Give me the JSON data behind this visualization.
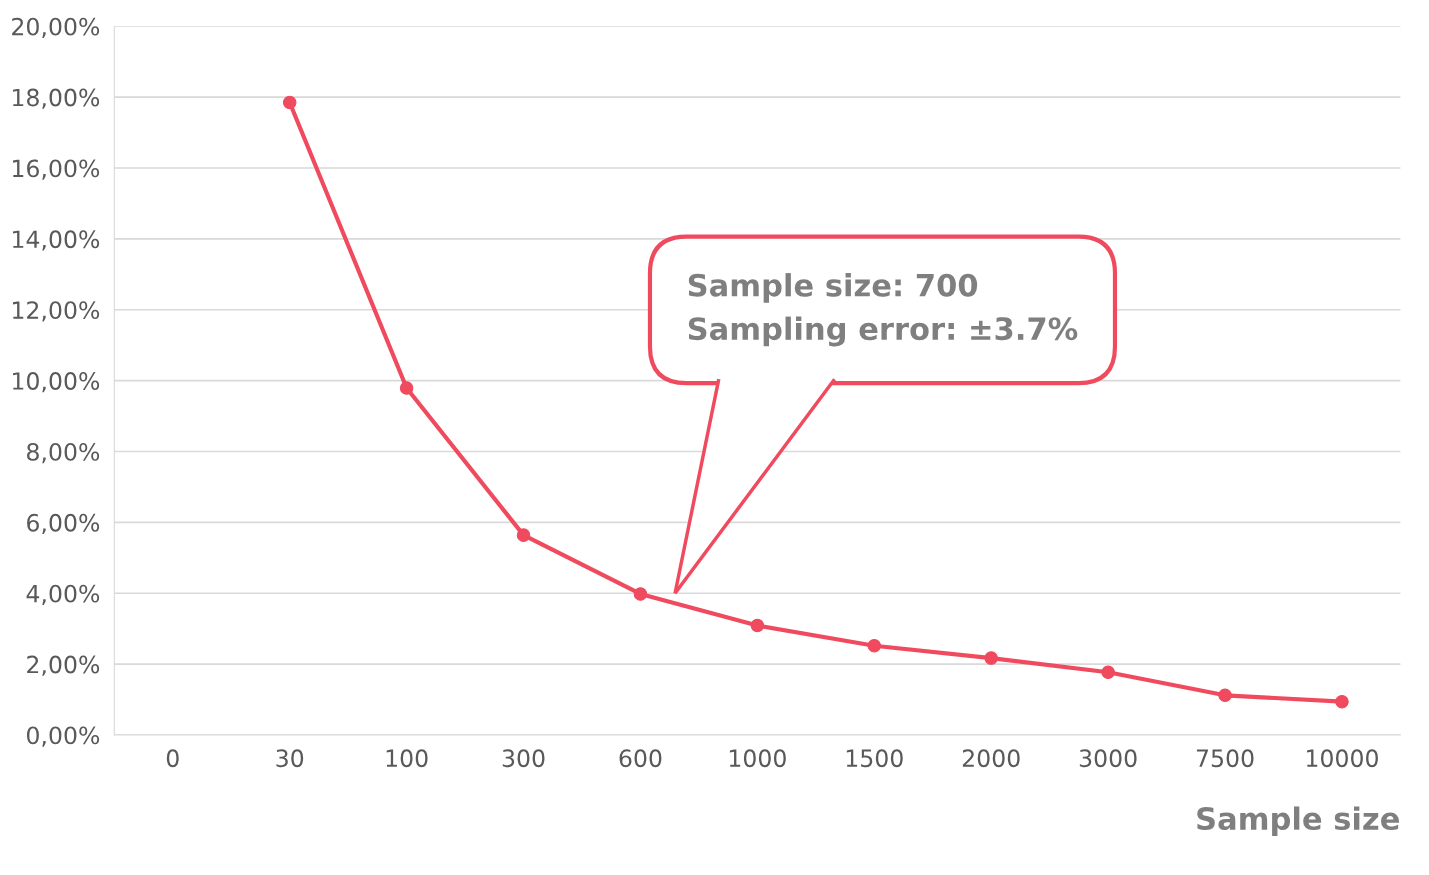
{
  "chart_data": {
    "type": "line",
    "xlabel": "Sample size",
    "categories": [
      "0",
      "30",
      "100",
      "300",
      "600",
      "1000",
      "1500",
      "2000",
      "3000",
      "7500",
      "10000"
    ],
    "series": [
      {
        "color": "#f04a5e",
        "values": [
          null,
          17.85,
          9.79,
          5.64,
          3.98,
          3.09,
          2.52,
          2.17,
          1.77,
          1.12,
          0.94
        ]
      }
    ],
    "ylim": [
      0,
      20
    ],
    "yticks": [
      {
        "value": 0,
        "label": "0,00%"
      },
      {
        "value": 2,
        "label": "2,00%"
      },
      {
        "value": 4,
        "label": "4,00%"
      },
      {
        "value": 6,
        "label": "6,00%"
      },
      {
        "value": 8,
        "label": "8,00%"
      },
      {
        "value": 10,
        "label": "10,00%"
      },
      {
        "value": 12,
        "label": "12,00%"
      },
      {
        "value": 14,
        "label": "14,00%"
      },
      {
        "value": 16,
        "label": "16,00%"
      },
      {
        "value": 18,
        "label": "18,00%"
      },
      {
        "value": 20,
        "label": "20,00%"
      }
    ],
    "grid": "y",
    "marker": "circle",
    "line_style": "solid",
    "annotations": [
      "Sample size: 700\nSampling error: ±3.7%"
    ]
  }
}
